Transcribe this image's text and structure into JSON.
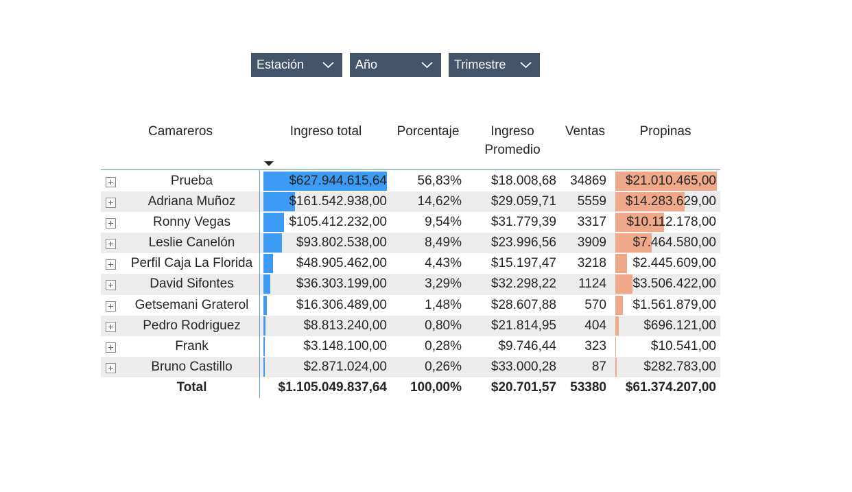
{
  "slicers": [
    {
      "label": "Estación"
    },
    {
      "label": "Año"
    },
    {
      "label": "Trimestre"
    }
  ],
  "headers": {
    "camareros": "Camareros",
    "ingreso_total": "Ingreso total",
    "porcentaje": "Porcentaje",
    "ingreso_promedio_1": "Ingreso",
    "ingreso_promedio_2": "Promedio",
    "ventas": "Ventas",
    "propinas": "Propinas"
  },
  "colors": {
    "bar_ingreso": "#3c9bf5",
    "bar_propinas": "#efa98a",
    "slicer_bg": "#44546a"
  },
  "rows": [
    {
      "name": "Prueba",
      "ingreso": "$627.944.615,64",
      "ingreso_frac": 1.0,
      "pct": "56,83%",
      "promedio": "$18.008,68",
      "ventas": "34869",
      "propinas": "$21.010.465,00",
      "propinas_frac": 1.0
    },
    {
      "name": "Adriana Muñoz",
      "ingreso": "$161.542.938,00",
      "ingreso_frac": 0.257,
      "pct": "14,62%",
      "promedio": "$29.059,71",
      "ventas": "5559",
      "propinas": "$14.283.629,00",
      "propinas_frac": 0.68
    },
    {
      "name": "Ronny Vegas",
      "ingreso": "$105.412.232,00",
      "ingreso_frac": 0.168,
      "pct": "9,54%",
      "promedio": "$31.779,39",
      "ventas": "3317",
      "propinas": "$10.112.178,00",
      "propinas_frac": 0.481
    },
    {
      "name": "Leslie Canelón",
      "ingreso": "$93.802.538,00",
      "ingreso_frac": 0.149,
      "pct": "8,49%",
      "promedio": "$23.996,56",
      "ventas": "3909",
      "propinas": "$7.464.580,00",
      "propinas_frac": 0.355
    },
    {
      "name": "Perfil Caja La Florida",
      "ingreso": "$48.905.462,00",
      "ingreso_frac": 0.078,
      "pct": "4,43%",
      "promedio": "$15.197,47",
      "ventas": "3218",
      "propinas": "$2.445.609,00",
      "propinas_frac": 0.116
    },
    {
      "name": "David Sifontes",
      "ingreso": "$36.303.199,00",
      "ingreso_frac": 0.058,
      "pct": "3,29%",
      "promedio": "$32.298,22",
      "ventas": "1124",
      "propinas": "$3.506.422,00",
      "propinas_frac": 0.167
    },
    {
      "name": "Getsemani Graterol",
      "ingreso": "$16.306.489,00",
      "ingreso_frac": 0.026,
      "pct": "1,48%",
      "promedio": "$28.607,88",
      "ventas": "570",
      "propinas": "$1.561.879,00",
      "propinas_frac": 0.074
    },
    {
      "name": "Pedro Rodriguez",
      "ingreso": "$8.813.240,00",
      "ingreso_frac": 0.014,
      "pct": "0,80%",
      "promedio": "$21.814,95",
      "ventas": "404",
      "propinas": "$696.121,00",
      "propinas_frac": 0.033
    },
    {
      "name": "Frank",
      "ingreso": "$3.148.100,00",
      "ingreso_frac": 0.005,
      "pct": "0,28%",
      "promedio": "$9.746,44",
      "ventas": "323",
      "propinas": "$10.541,00",
      "propinas_frac": 0.0005
    },
    {
      "name": "Bruno Castillo",
      "ingreso": "$2.871.024,00",
      "ingreso_frac": 0.0046,
      "pct": "0,26%",
      "promedio": "$33.000,28",
      "ventas": "87",
      "propinas": "$282.783,00",
      "propinas_frac": 0.013
    }
  ],
  "total": {
    "name": "Total",
    "ingreso": "$1.105.049.837,64",
    "pct": "100,00%",
    "promedio": "$20.701,57",
    "ventas": "53380",
    "propinas": "$61.374.207,00"
  }
}
